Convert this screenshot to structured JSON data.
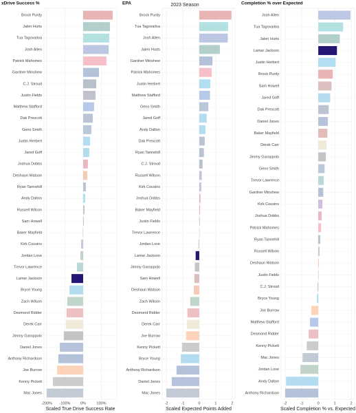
{
  "chart_data": [
    {
      "type": "bar",
      "orientation": "horizontal",
      "title": "xDrive Success %",
      "xlabel": "Scaled True Drive Success Rate",
      "categories": [
        "Brock Purdy",
        "Jalen Hurts",
        "Tua Tagovailoa",
        "Josh Allen",
        "Patrick Mahomes",
        "Gardner Minshew",
        "C.J. Stroud",
        "Justin Fields",
        "Matthew Stafford",
        "Dak Prescott",
        "Geno Smith",
        "Justin Herbert",
        "Jared Goff",
        "Joshua Dobbs",
        "Deshaun Watson",
        "Ryan Tannehill",
        "Andy Dalton",
        "Russell Wilson",
        "Sam Howell",
        "Baker Mayfield",
        "Kirk Cousins",
        "Jordan Love",
        "Trevor Lawrence",
        "Lamar Jackson",
        "Bryce Young",
        "Zach Wilson",
        "Desmond Ridder",
        "Derek Carr",
        "Jimmy Garoppolo",
        "Daniel Jones",
        "Anthony Richardson",
        "Joe Burrow",
        "Kenny Pickett",
        "Mac Jones"
      ],
      "values": [
        162,
        147,
        143,
        140,
        128,
        87,
        72,
        68,
        60,
        53,
        45,
        38,
        34,
        26,
        23,
        15,
        11,
        8,
        4,
        -2,
        -11,
        -15,
        -34,
        -64,
        -75,
        -87,
        -91,
        -94,
        -106,
        -128,
        -136,
        -143,
        -166,
        -200
      ],
      "colors": [
        "#e8b4b4",
        "#b3cfcc",
        "#b3e0e0",
        "#bcc7e3",
        "#f7c0c8",
        "#b3c2d9",
        "#b8c0cc",
        "#c0c2cc",
        "#b6c9e8",
        "#bcc4d4",
        "#b9c7d9",
        "#b3ddf2",
        "#b3dcef",
        "#e8b9c3",
        "#f5cbb3",
        "#b9c4d1",
        "#b3dcf0",
        "#c0c6d4",
        "#dcc0c0",
        "#e3bbbb",
        "#cfc0de",
        "#c1d3c8",
        "#b8d7d6",
        "#241773",
        "#b3dcf0",
        "#c0d6cb",
        "#eec0c4",
        "#f0ead8",
        "#c4c4c4",
        "#b7c2dc",
        "#b3c2d9",
        "#fcd2b8",
        "#cccccc",
        "#c2cad6"
      ],
      "xlim": [
        -215,
        185
      ],
      "xticks": [
        {
          "value": -200,
          "label": "-200%"
        },
        {
          "value": -100,
          "label": "-100%"
        },
        {
          "value": 0,
          "label": "0%"
        },
        {
          "value": 100,
          "label": "100%"
        }
      ],
      "grid": true
    },
    {
      "type": "bar",
      "orientation": "horizontal",
      "title": "EPA",
      "subtitle": "2023 Season",
      "xlabel": "Scaled Expected Points Added",
      "categories": [
        "Brock Purdy",
        "Tua Tagovailoa",
        "Josh Allen",
        "Jalen Hurts",
        "Gardner Minshew",
        "Patrick Mahomes",
        "Justin Herbert",
        "Matthew Stafford",
        "Geno Smith",
        "Jared Goff",
        "Andy Dalton",
        "Dak Prescott",
        "Ryan Tannehill",
        "C.J. Stroud",
        "Russell Wilson",
        "Kirk Cousins",
        "Joshua Dobbs",
        "Baker Mayfield",
        "Justin Fields",
        "Trevor Lawrence",
        "Jordan Love",
        "Lamar Jackson",
        "Jimmy Garoppolo",
        "Sam Howell",
        "Deshaun Watson",
        "Zach Wilson",
        "Desmond Ridder",
        "Derek Carr",
        "Joe Burrow",
        "Kenny Pickett",
        "Bryce Young",
        "Anthony Richardson",
        "Daniel Jones",
        "Mac Jones"
      ],
      "values": [
        1.95,
        1.75,
        1.73,
        1.25,
        0.8,
        0.75,
        0.67,
        0.65,
        0.55,
        0.45,
        0.37,
        0.33,
        0.28,
        0.2,
        0.15,
        0.12,
        0.08,
        0.05,
        0.03,
        0,
        -0.05,
        -0.22,
        -0.27,
        -0.3,
        -0.33,
        -0.55,
        -0.72,
        -0.75,
        -0.8,
        -1.05,
        -1.12,
        -1.38,
        -1.67,
        -2.0
      ],
      "colors": [
        "#e8b4b4",
        "#b3e0e0",
        "#bcc7e3",
        "#b3cfcc",
        "#b3c2d9",
        "#f7c0c8",
        "#b3ddf2",
        "#b6c9e8",
        "#b9c7d9",
        "#b3dcef",
        "#b3dcf0",
        "#bcc4d4",
        "#b9c4d1",
        "#b8c0cc",
        "#c0c6d4",
        "#cfc0de",
        "#e8b9c3",
        "#e3bbbb",
        "#c0c2cc",
        "#b8d7d6",
        "#c1d3c8",
        "#241773",
        "#c4c4c4",
        "#dcc0c0",
        "#f5cbb3",
        "#c0d6cb",
        "#eec0c4",
        "#f0ead8",
        "#fcd2b8",
        "#cccccc",
        "#b3dcf0",
        "#b3c2d9",
        "#b7c2dc",
        "#c2cad6"
      ],
      "xlim": [
        -2.25,
        2.17
      ],
      "xticks": [
        -2,
        -1,
        0,
        1,
        2
      ],
      "grid": true
    },
    {
      "type": "bar",
      "orientation": "horizontal",
      "title": "Completion % over Expected",
      "xlabel": "Scaled Completion % vs. Expected",
      "categories": [
        "Josh Allen",
        "Tua Tagovailoa",
        "Jalen Hurts",
        "Lamar Jackson",
        "Justin Herbert",
        "Brock Purdy",
        "Sam Howell",
        "Jared Goff",
        "Dak Prescott",
        "Daniel Jones",
        "Baker Mayfield",
        "Derek Carr",
        "Jimmy Garoppolo",
        "Geno Smith",
        "Trevor Lawrence",
        "Gardner Minshew",
        "Kirk Cousins",
        "Joshua Dobbs",
        "Patrick Mahomes",
        "Ryan Tannehill",
        "Russell Wilson",
        "Deshaun Watson",
        "Justin Fields",
        "C.J. Stroud",
        "Bryce Young",
        "Joe Burrow",
        "Matthew Stafford",
        "Desmond Ridder",
        "Kenny Pickett",
        "Mac Jones",
        "Jordan Love",
        "Andy Dalton",
        "Anthony Richardson"
      ],
      "values": [
        1.95,
        1.5,
        1.3,
        1.13,
        1.05,
        0.88,
        0.8,
        0.72,
        0.63,
        0.58,
        0.55,
        0.5,
        0.46,
        0.38,
        0.33,
        0.3,
        0.25,
        0.2,
        0.17,
        0.12,
        0.08,
        0.04,
        0,
        -0.04,
        -0.08,
        -0.42,
        -0.5,
        -0.58,
        -0.7,
        -0.95,
        -1.08,
        -1.95,
        -2.0
      ],
      "colors": [
        "#bcc7e3",
        "#b3e0e0",
        "#b3cfcc",
        "#241773",
        "#b3ddf2",
        "#e8b4b4",
        "#dcc0c0",
        "#b3dcef",
        "#bcc4d4",
        "#b7c2dc",
        "#e3bbbb",
        "#f0ead8",
        "#c4c4c4",
        "#b9c7d9",
        "#b8d7d6",
        "#b3c2d9",
        "#cfc0de",
        "#e8b9c3",
        "#f7c0c8",
        "#b9c4d1",
        "#c0c6d4",
        "#f5cbb3",
        "#c0c2cc",
        "#b8c0cc",
        "#b3dcf0",
        "#fcd2b8",
        "#b6c9e8",
        "#eec0c4",
        "#cccccc",
        "#c2cad6",
        "#c1d3c8",
        "#b3dcf0",
        "#b3c2d9"
      ],
      "xlim": [
        -2.25,
        2.2
      ],
      "xticks": [
        -2,
        -1,
        0,
        1,
        2
      ],
      "grid": true
    }
  ]
}
